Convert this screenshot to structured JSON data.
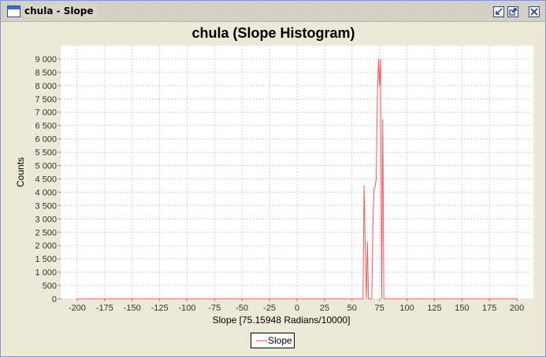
{
  "window": {
    "title": "chula - Slope"
  },
  "controls": {
    "minimize_icon": "iconify-icon",
    "maximize_icon": "maximize-icon",
    "close_icon": "close-icon"
  },
  "colors": {
    "series": "#ff5555",
    "plot_bg": "#ffffff",
    "grid": "#d0d0d0",
    "frame": "#ece9d8"
  },
  "chart_data": {
    "type": "line",
    "title": "chula (Slope Histogram)",
    "xlabel": "Slope [75.15948 Radians/10000]",
    "ylabel": "Counts",
    "xlim": [
      -215,
      215
    ],
    "ylim": [
      0,
      9500
    ],
    "grid": true,
    "legend": "bottom-center",
    "xticks": [
      -200,
      -175,
      -150,
      -125,
      -100,
      -75,
      -50,
      -25,
      0,
      25,
      50,
      75,
      100,
      125,
      150,
      175,
      200
    ],
    "yticks": [
      0,
      500,
      1000,
      1500,
      2000,
      2500,
      3000,
      3500,
      4000,
      4500,
      5000,
      5500,
      6000,
      6500,
      7000,
      7500,
      8000,
      8500,
      9000
    ],
    "xtick_labels": [
      "-200",
      "-175",
      "-150",
      "-125",
      "-100",
      "-75",
      "-50",
      "-25",
      "0",
      "25",
      "50",
      "75",
      "100",
      "125",
      "150",
      "175",
      "200"
    ],
    "ytick_labels": [
      "0",
      "500",
      "1 000",
      "1 500",
      "2 000",
      "2 500",
      "3 000",
      "3 500",
      "4 000",
      "4 500",
      "5 000",
      "5 500",
      "6 000",
      "6 500",
      "7 000",
      "7 500",
      "8 000",
      "8 500",
      "9 000"
    ],
    "series": [
      {
        "name": "Slope",
        "x": [
          -200,
          60,
          61,
          62,
          63,
          64,
          65,
          66,
          67,
          68,
          69,
          70,
          71,
          72,
          73,
          74,
          75,
          76,
          77,
          78,
          79,
          80,
          81,
          82,
          200
        ],
        "y": [
          0,
          0,
          4250,
          2100,
          0,
          2150,
          0,
          0,
          0,
          0,
          2800,
          4150,
          4200,
          4500,
          7500,
          9000,
          8000,
          9000,
          0,
          6750,
          0,
          0,
          0,
          0,
          0
        ]
      }
    ]
  }
}
